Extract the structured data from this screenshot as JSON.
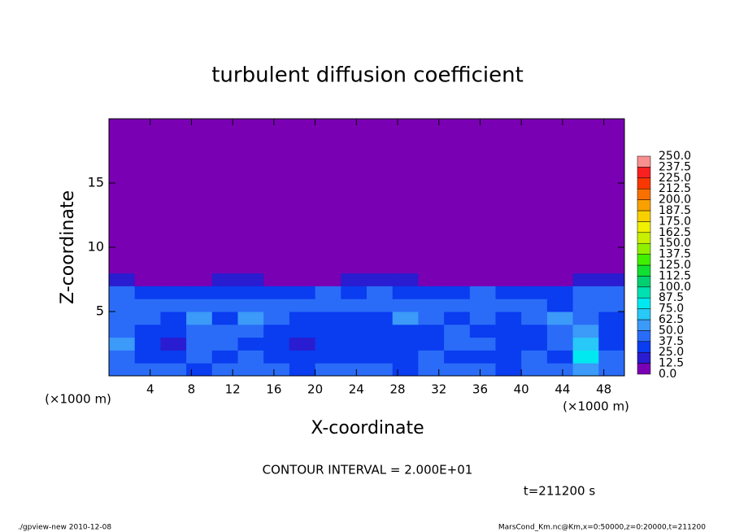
{
  "chart_data": {
    "type": "contour",
    "title": "turbulent diffusion coefficient",
    "xlabel": "X-coordinate",
    "ylabel": "Z-coordinate",
    "x_unit_left": "(×1000 m)",
    "x_unit_right": "(×1000 m)",
    "contour_note": "CONTOUR INTERVAL = 2.000E+01",
    "time_label": "t=211200 s",
    "footer_left": "./gpview-new  2010-12-08",
    "footer_right": "MarsCond_Km.nc@Km,x=0:50000,z=0:20000,t=211200",
    "xlim": [
      0,
      50
    ],
    "ylim": [
      0,
      20
    ],
    "xticks": [
      4,
      8,
      12,
      16,
      20,
      24,
      28,
      32,
      36,
      40,
      44,
      48
    ],
    "yticks": [
      5,
      10,
      15
    ],
    "xbins": [
      0,
      2.5,
      5,
      7.5,
      10,
      12.5,
      15,
      17.5,
      20,
      22.5,
      25,
      27.5,
      30,
      32.5,
      35,
      37.5,
      40,
      42.5,
      45,
      47.5,
      50
    ],
    "zbins": [
      0,
      1,
      2,
      3,
      4,
      5,
      6,
      7,
      8,
      20
    ],
    "values": [
      [
        40,
        45,
        40,
        35,
        40,
        45,
        40,
        35,
        40,
        45,
        40,
        35,
        40,
        45,
        40,
        35,
        40,
        45,
        60,
        45
      ],
      [
        45,
        35,
        25,
        40,
        35,
        45,
        30,
        30,
        25,
        30,
        35,
        30,
        40,
        35,
        30,
        25,
        40,
        35,
        75,
        40
      ],
      [
        50,
        30,
        20,
        40,
        45,
        35,
        30,
        20,
        25,
        30,
        30,
        30,
        30,
        45,
        40,
        25,
        30,
        45,
        70,
        35
      ],
      [
        45,
        35,
        25,
        45,
        40,
        45,
        35,
        25,
        25,
        30,
        25,
        30,
        35,
        40,
        35,
        30,
        35,
        45,
        60,
        30
      ],
      [
        40,
        40,
        35,
        50,
        35,
        50,
        40,
        35,
        30,
        30,
        35,
        50,
        40,
        35,
        45,
        35,
        40,
        50,
        45,
        35
      ],
      [
        45,
        45,
        40,
        45,
        45,
        40,
        45,
        40,
        45,
        40,
        45,
        40,
        45,
        40,
        45,
        40,
        45,
        35,
        45,
        40
      ],
      [
        40,
        35,
        30,
        35,
        30,
        35,
        30,
        30,
        40,
        35,
        40,
        30,
        35,
        30,
        40,
        30,
        30,
        35,
        40,
        40
      ],
      [
        20,
        5,
        0,
        10,
        15,
        20,
        5,
        0,
        10,
        15,
        20,
        15,
        10,
        0,
        0,
        0,
        5,
        10,
        20,
        20
      ],
      [
        0,
        0,
        0,
        0,
        0,
        0,
        0,
        0,
        0,
        0,
        0,
        0,
        0,
        0,
        0,
        0,
        0,
        0,
        0,
        0
      ]
    ],
    "colorbar": {
      "ticks": [
        {
          "value": 0,
          "label": "0.0"
        },
        {
          "value": 12.5,
          "label": "12.5"
        },
        {
          "value": 25,
          "label": "25.0"
        },
        {
          "value": 37.5,
          "label": "37.5"
        },
        {
          "value": 50,
          "label": "50.0"
        },
        {
          "value": 62.5,
          "label": "62.5"
        },
        {
          "value": 75,
          "label": "75.0"
        },
        {
          "value": 87.5,
          "label": "87.5"
        },
        {
          "value": 100,
          "label": "100.0"
        },
        {
          "value": 112.5,
          "label": "112.5"
        },
        {
          "value": 125,
          "label": "125.0"
        },
        {
          "value": 137.5,
          "label": "137.5"
        },
        {
          "value": 150,
          "label": "150.0"
        },
        {
          "value": 162.5,
          "label": "162.5"
        },
        {
          "value": 175,
          "label": "175.0"
        },
        {
          "value": 187.5,
          "label": "187.5"
        },
        {
          "value": 200,
          "label": "200.0"
        },
        {
          "value": 212.5,
          "label": "212.5"
        },
        {
          "value": 225,
          "label": "225.0"
        },
        {
          "value": 237.5,
          "label": "237.5"
        },
        {
          "value": 250,
          "label": "250.0"
        }
      ],
      "colors": [
        "#7a00b4",
        "#2a1cd0",
        "#0a3cf0",
        "#2a6cf8",
        "#3c9af8",
        "#28c8f8",
        "#00e8f0",
        "#00e0b0",
        "#00d070",
        "#10e030",
        "#40f000",
        "#90f000",
        "#c8f000",
        "#f0f000",
        "#f8d000",
        "#f8a000",
        "#f87000",
        "#f83800",
        "#f82020",
        "#f89090"
      ]
    }
  }
}
